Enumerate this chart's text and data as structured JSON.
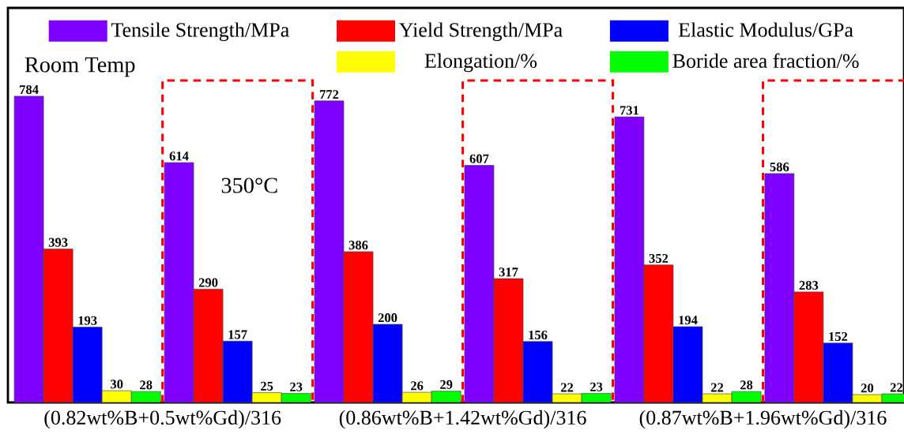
{
  "chart_data": {
    "type": "bar",
    "categories": [
      null,
      null,
      null,
      null,
      null,
      null
    ],
    "ylim": [
      0,
      1010
    ],
    "legend": "top",
    "data_labels": true,
    "series": [
      {
        "name": "Tensile Strength/MPa",
        "color": "#8000ff",
        "values": [
          784,
          614,
          772,
          607,
          731,
          586
        ]
      },
      {
        "name": "Yield Strength/MPa",
        "color": "#ff0000",
        "values": [
          393,
          290,
          386,
          317,
          352,
          283
        ]
      },
      {
        "name": "Elastic Modulus/GPa",
        "color": "#0000ff",
        "values": [
          193,
          157,
          200,
          156,
          194,
          152
        ]
      },
      {
        "name": "Elongation/%",
        "color": "#ffff00",
        "values": [
          30,
          25,
          26,
          22,
          22,
          20
        ]
      },
      {
        "name": "Boride area fraction/%",
        "color": "#00ff00",
        "values": [
          28,
          23,
          29,
          23,
          28,
          22
        ]
      }
    ],
    "annotations": [
      "Room Temp",
      "350°C",
      "(0.82wt%B+0.5wt%Gd)/316",
      "(0.86wt%B+1.42wt%Gd)/316",
      "(0.87wt%B+1.96wt%Gd)/316"
    ]
  }
}
